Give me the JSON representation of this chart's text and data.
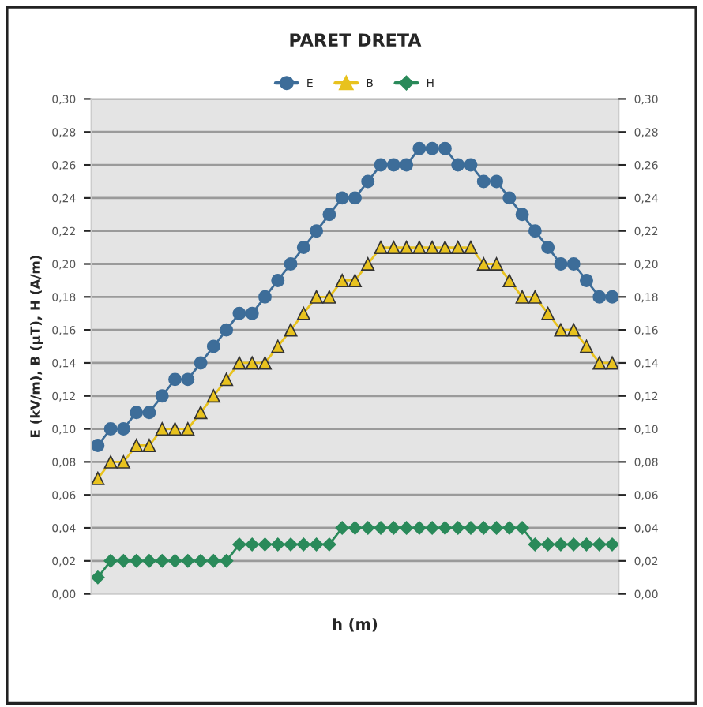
{
  "chart_data": {
    "type": "line",
    "title": "PARET DRETA",
    "xlabel": "h (m)",
    "ylabel": "E (kV/m), B (µT), H (A/m)",
    "categories": [
      null,
      null,
      null,
      null,
      null,
      null,
      null,
      null,
      null,
      null,
      null,
      null,
      null,
      null,
      null,
      null,
      null,
      null,
      null,
      null,
      null,
      null,
      null,
      null,
      null,
      null,
      null,
      null,
      null,
      null,
      null,
      null,
      null,
      null,
      null,
      null,
      null,
      null,
      null,
      null,
      null
    ],
    "series": [
      {
        "name": "E",
        "color": "#3d6d99",
        "marker": "circle",
        "values": [
          0.09,
          0.1,
          0.1,
          0.11,
          0.11,
          0.12,
          0.13,
          0.13,
          0.14,
          0.15,
          0.16,
          0.17,
          0.17,
          0.18,
          0.19,
          0.2,
          0.21,
          0.22,
          0.23,
          0.24,
          0.24,
          0.25,
          0.26,
          0.26,
          0.26,
          0.27,
          0.27,
          0.27,
          0.26,
          0.26,
          0.25,
          0.25,
          0.24,
          0.23,
          0.22,
          0.21,
          0.2,
          0.2,
          0.19,
          0.18,
          0.18
        ]
      },
      {
        "name": "B",
        "color": "#e8c21e",
        "marker": "triangle",
        "values": [
          0.07,
          0.08,
          0.08,
          0.09,
          0.09,
          0.1,
          0.1,
          0.1,
          0.11,
          0.12,
          0.13,
          0.14,
          0.14,
          0.14,
          0.15,
          0.16,
          0.17,
          0.18,
          0.18,
          0.19,
          0.19,
          0.2,
          0.21,
          0.21,
          0.21,
          0.21,
          0.21,
          0.21,
          0.21,
          0.21,
          0.2,
          0.2,
          0.19,
          0.18,
          0.18,
          0.17,
          0.16,
          0.16,
          0.15,
          0.14,
          0.14
        ]
      },
      {
        "name": "H",
        "color": "#2a8a5a",
        "marker": "diamond",
        "values": [
          0.01,
          0.02,
          0.02,
          0.02,
          0.02,
          0.02,
          0.02,
          0.02,
          0.02,
          0.02,
          0.02,
          0.03,
          0.03,
          0.03,
          0.03,
          0.03,
          0.03,
          0.03,
          0.03,
          0.04,
          0.04,
          0.04,
          0.04,
          0.04,
          0.04,
          0.04,
          0.04,
          0.04,
          0.04,
          0.04,
          0.04,
          0.04,
          0.04,
          0.04,
          0.03,
          0.03,
          0.03,
          0.03,
          0.03,
          0.03,
          0.03
        ]
      }
    ],
    "ylim": [
      0,
      0.3
    ],
    "yticks": [
      {
        "value": 0,
        "label": "0,00"
      },
      {
        "value": 0.02,
        "label": "0,02"
      },
      {
        "value": 0.04,
        "label": "0,04"
      },
      {
        "value": 0.06,
        "label": "0,06"
      },
      {
        "value": 0.08,
        "label": "0,08"
      },
      {
        "value": 0.1,
        "label": "0,10"
      },
      {
        "value": 0.12,
        "label": "0,12"
      },
      {
        "value": 0.14,
        "label": "0,14"
      },
      {
        "value": 0.16,
        "label": "0,16"
      },
      {
        "value": 0.18,
        "label": "0,18"
      },
      {
        "value": 0.2,
        "label": "0,20"
      },
      {
        "value": 0.22,
        "label": "0,22"
      },
      {
        "value": 0.24,
        "label": "0,24"
      },
      {
        "value": 0.26,
        "label": "0,26"
      },
      {
        "value": 0.28,
        "label": "0,28"
      },
      {
        "value": 0.3,
        "label": "0,30"
      }
    ],
    "y2lim": [
      0,
      0.3
    ],
    "y2ticks": [
      {
        "value": 0,
        "label": "0,00"
      },
      {
        "value": 0.02,
        "label": "0,02"
      },
      {
        "value": 0.04,
        "label": "0,04"
      },
      {
        "value": 0.06,
        "label": "0,06"
      },
      {
        "value": 0.08,
        "label": "0,08"
      },
      {
        "value": 0.1,
        "label": "0,10"
      },
      {
        "value": 0.12,
        "label": "0,12"
      },
      {
        "value": 0.14,
        "label": "0,14"
      },
      {
        "value": 0.16,
        "label": "0,16"
      },
      {
        "value": 0.18,
        "label": "0,18"
      },
      {
        "value": 0.2,
        "label": "0,20"
      },
      {
        "value": 0.22,
        "label": "0,22"
      },
      {
        "value": 0.24,
        "label": "0,24"
      },
      {
        "value": 0.26,
        "label": "0,26"
      },
      {
        "value": 0.28,
        "label": "0,28"
      },
      {
        "value": 0.3,
        "label": "0,30"
      }
    ],
    "grid": "y",
    "legend": "top",
    "line_style": "solid"
  }
}
